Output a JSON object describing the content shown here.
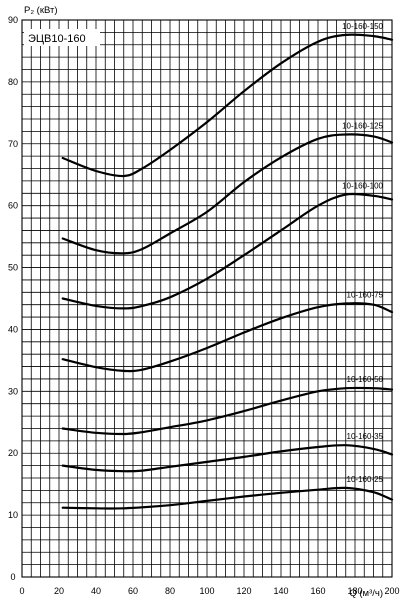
{
  "chart_data": {
    "type": "line",
    "title": "ЭЦВ10-160",
    "ylabel": "P₂ (кВт)",
    "xlabel": "Q (м³/ч)",
    "xlim": [
      0,
      200
    ],
    "ylim": [
      0,
      90
    ],
    "x_ticks": [
      0,
      20,
      40,
      60,
      80,
      100,
      120,
      140,
      160,
      180,
      200
    ],
    "y_ticks": [
      0,
      10,
      20,
      30,
      40,
      50,
      60,
      70,
      80,
      90
    ],
    "grid": true,
    "series": [
      {
        "name": "10-160-150",
        "points": [
          [
            22,
            67.7
          ],
          [
            40,
            65.6
          ],
          [
            55,
            64.8
          ],
          [
            65,
            66
          ],
          [
            80,
            69
          ],
          [
            100,
            73.5
          ],
          [
            120,
            78.5
          ],
          [
            140,
            83
          ],
          [
            160,
            86.5
          ],
          [
            175,
            87.6
          ],
          [
            190,
            87.4
          ],
          [
            200,
            86.8
          ]
        ]
      },
      {
        "name": "10-160-125",
        "points": [
          [
            22,
            54.7
          ],
          [
            40,
            52.8
          ],
          [
            55,
            52.3
          ],
          [
            65,
            53
          ],
          [
            80,
            55.5
          ],
          [
            100,
            59
          ],
          [
            120,
            63.8
          ],
          [
            140,
            67.8
          ],
          [
            160,
            70.8
          ],
          [
            175,
            71.5
          ],
          [
            190,
            71.2
          ],
          [
            200,
            70.2
          ]
        ]
      },
      {
        "name": "10-160-100",
        "points": [
          [
            22,
            45
          ],
          [
            40,
            43.8
          ],
          [
            55,
            43.4
          ],
          [
            65,
            43.8
          ],
          [
            80,
            45.2
          ],
          [
            100,
            48.2
          ],
          [
            120,
            52
          ],
          [
            140,
            56
          ],
          [
            160,
            60
          ],
          [
            175,
            61.8
          ],
          [
            190,
            61.6
          ],
          [
            200,
            61
          ]
        ]
      },
      {
        "name": "10-160-75",
        "points": [
          [
            22,
            35.2
          ],
          [
            40,
            33.9
          ],
          [
            55,
            33.3
          ],
          [
            65,
            33.5
          ],
          [
            80,
            34.8
          ],
          [
            100,
            37
          ],
          [
            120,
            39.5
          ],
          [
            140,
            41.8
          ],
          [
            160,
            43.6
          ],
          [
            175,
            44.2
          ],
          [
            190,
            44
          ],
          [
            200,
            42.8
          ]
        ]
      },
      {
        "name": "10-160-50",
        "points": [
          [
            22,
            24
          ],
          [
            40,
            23.3
          ],
          [
            55,
            23.1
          ],
          [
            65,
            23.4
          ],
          [
            80,
            24.2
          ],
          [
            100,
            25.3
          ],
          [
            120,
            26.8
          ],
          [
            140,
            28.5
          ],
          [
            160,
            30
          ],
          [
            175,
            30.5
          ],
          [
            190,
            30.5
          ],
          [
            200,
            30.3
          ]
        ]
      },
      {
        "name": "10-160-35",
        "points": [
          [
            22,
            18
          ],
          [
            40,
            17.3
          ],
          [
            55,
            17.1
          ],
          [
            65,
            17.2
          ],
          [
            80,
            17.8
          ],
          [
            100,
            18.6
          ],
          [
            120,
            19.4
          ],
          [
            140,
            20.3
          ],
          [
            160,
            21
          ],
          [
            175,
            21.3
          ],
          [
            190,
            20.7
          ],
          [
            200,
            19.8
          ]
        ]
      },
      {
        "name": "10-160-25",
        "points": [
          [
            22,
            11.2
          ],
          [
            40,
            11.1
          ],
          [
            55,
            11.1
          ],
          [
            80,
            11.6
          ],
          [
            100,
            12.3
          ],
          [
            120,
            13
          ],
          [
            140,
            13.6
          ],
          [
            160,
            14.1
          ],
          [
            175,
            14.4
          ],
          [
            190,
            13.7
          ],
          [
            200,
            12.5
          ]
        ]
      }
    ]
  }
}
